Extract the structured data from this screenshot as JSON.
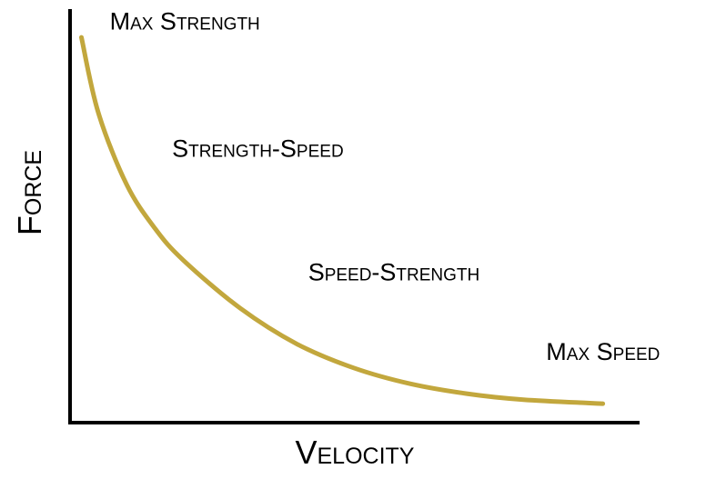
{
  "chart_data": {
    "type": "line",
    "xlabel": "Velocity",
    "ylabel": "Force",
    "xlim": [
      0,
      1
    ],
    "ylim": [
      0,
      1
    ],
    "grid": false,
    "series": [
      {
        "values_xy": [
          [
            0.02,
            0.97
          ],
          [
            0.05,
            0.78
          ],
          [
            0.1,
            0.6
          ],
          [
            0.15,
            0.49
          ],
          [
            0.2,
            0.41
          ],
          [
            0.3,
            0.29
          ],
          [
            0.4,
            0.2
          ],
          [
            0.5,
            0.14
          ],
          [
            0.6,
            0.1
          ],
          [
            0.7,
            0.075
          ],
          [
            0.8,
            0.06
          ],
          [
            0.94,
            0.05
          ]
        ]
      }
    ],
    "annotations": [
      {
        "text": "Max Strength",
        "x": 0.07,
        "y": 0.99
      },
      {
        "text": "Strength-Speed",
        "x": 0.18,
        "y": 0.67
      },
      {
        "text": "Speed-Strength",
        "x": 0.42,
        "y": 0.36
      },
      {
        "text": "Max Speed",
        "x": 0.84,
        "y": 0.16
      }
    ],
    "colors": {
      "curve": "#c2a73d",
      "axes": "#000000"
    }
  }
}
